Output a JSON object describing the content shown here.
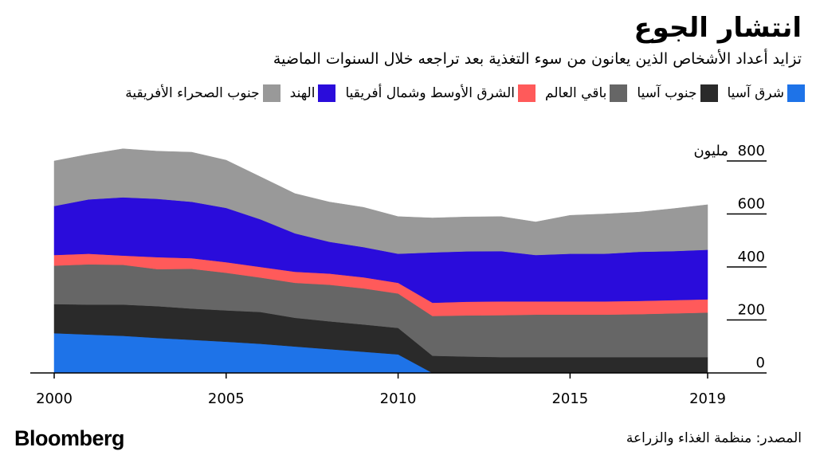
{
  "header": {
    "title": "انتشار الجوع",
    "subtitle": "تزايد أعداد الأشخاص الذين يعانون من سوء التغذية بعد تراجعه خلال السنوات الماضية"
  },
  "footer": {
    "source": "المصدر: منظمة الغذاء والزراعة",
    "brand": "Bloomberg"
  },
  "chart_data": {
    "type": "area",
    "stacked": true,
    "title": "انتشار الجوع",
    "subtitle": "تزايد أعداد الأشخاص الذين يعانون من سوء التغذية بعد تراجعه خلال السنوات الماضية",
    "y_unit_label": "مليون",
    "ylim": [
      0,
      800
    ],
    "yticks": [
      0,
      200,
      400,
      600,
      800
    ],
    "xlim": [
      2000,
      2019
    ],
    "xticks": [
      2000,
      2005,
      2010,
      2015,
      2019
    ],
    "legend_position": "top",
    "x": [
      2000,
      2001,
      2002,
      2003,
      2004,
      2005,
      2006,
      2007,
      2008,
      2009,
      2010,
      2011,
      2012,
      2013,
      2014,
      2015,
      2016,
      2017,
      2018,
      2019
    ],
    "series": [
      {
        "name": "شرق آسيا",
        "color": "#1e73e8",
        "values": [
          150,
          145,
          140,
          132,
          125,
          118,
          110,
          100,
          90,
          80,
          70,
          0,
          0,
          0,
          0,
          0,
          0,
          0,
          0,
          0
        ]
      },
      {
        "name": "جنوب آسيا",
        "color": "#2a2a2a",
        "values": [
          110,
          113,
          118,
          120,
          118,
          118,
          120,
          108,
          105,
          103,
          100,
          65,
          62,
          60,
          60,
          60,
          60,
          60,
          60,
          60
        ]
      },
      {
        "name": "باقي العالم",
        "color": "#666666",
        "values": [
          145,
          152,
          150,
          140,
          150,
          142,
          130,
          132,
          138,
          136,
          130,
          150,
          155,
          158,
          160,
          160,
          160,
          162,
          165,
          168
        ]
      },
      {
        "name": "الشرق الأوسط وشمال أفريقيا",
        "color": "#ff5a5a",
        "values": [
          40,
          40,
          35,
          45,
          40,
          40,
          40,
          42,
          42,
          42,
          40,
          50,
          52,
          52,
          50,
          50,
          50,
          50,
          50,
          50
        ]
      },
      {
        "name": "الهند",
        "color": "#2a0cdb",
        "values": [
          185,
          205,
          220,
          220,
          213,
          205,
          180,
          145,
          120,
          114,
          110,
          190,
          190,
          190,
          175,
          180,
          180,
          185,
          185,
          187
        ]
      },
      {
        "name": "جنوب الصحراء الأفريقية",
        "color": "#999999",
        "values": [
          170,
          170,
          183,
          180,
          187,
          180,
          160,
          150,
          150,
          150,
          140,
          130,
          130,
          130,
          125,
          145,
          150,
          150,
          160,
          170
        ]
      }
    ]
  }
}
